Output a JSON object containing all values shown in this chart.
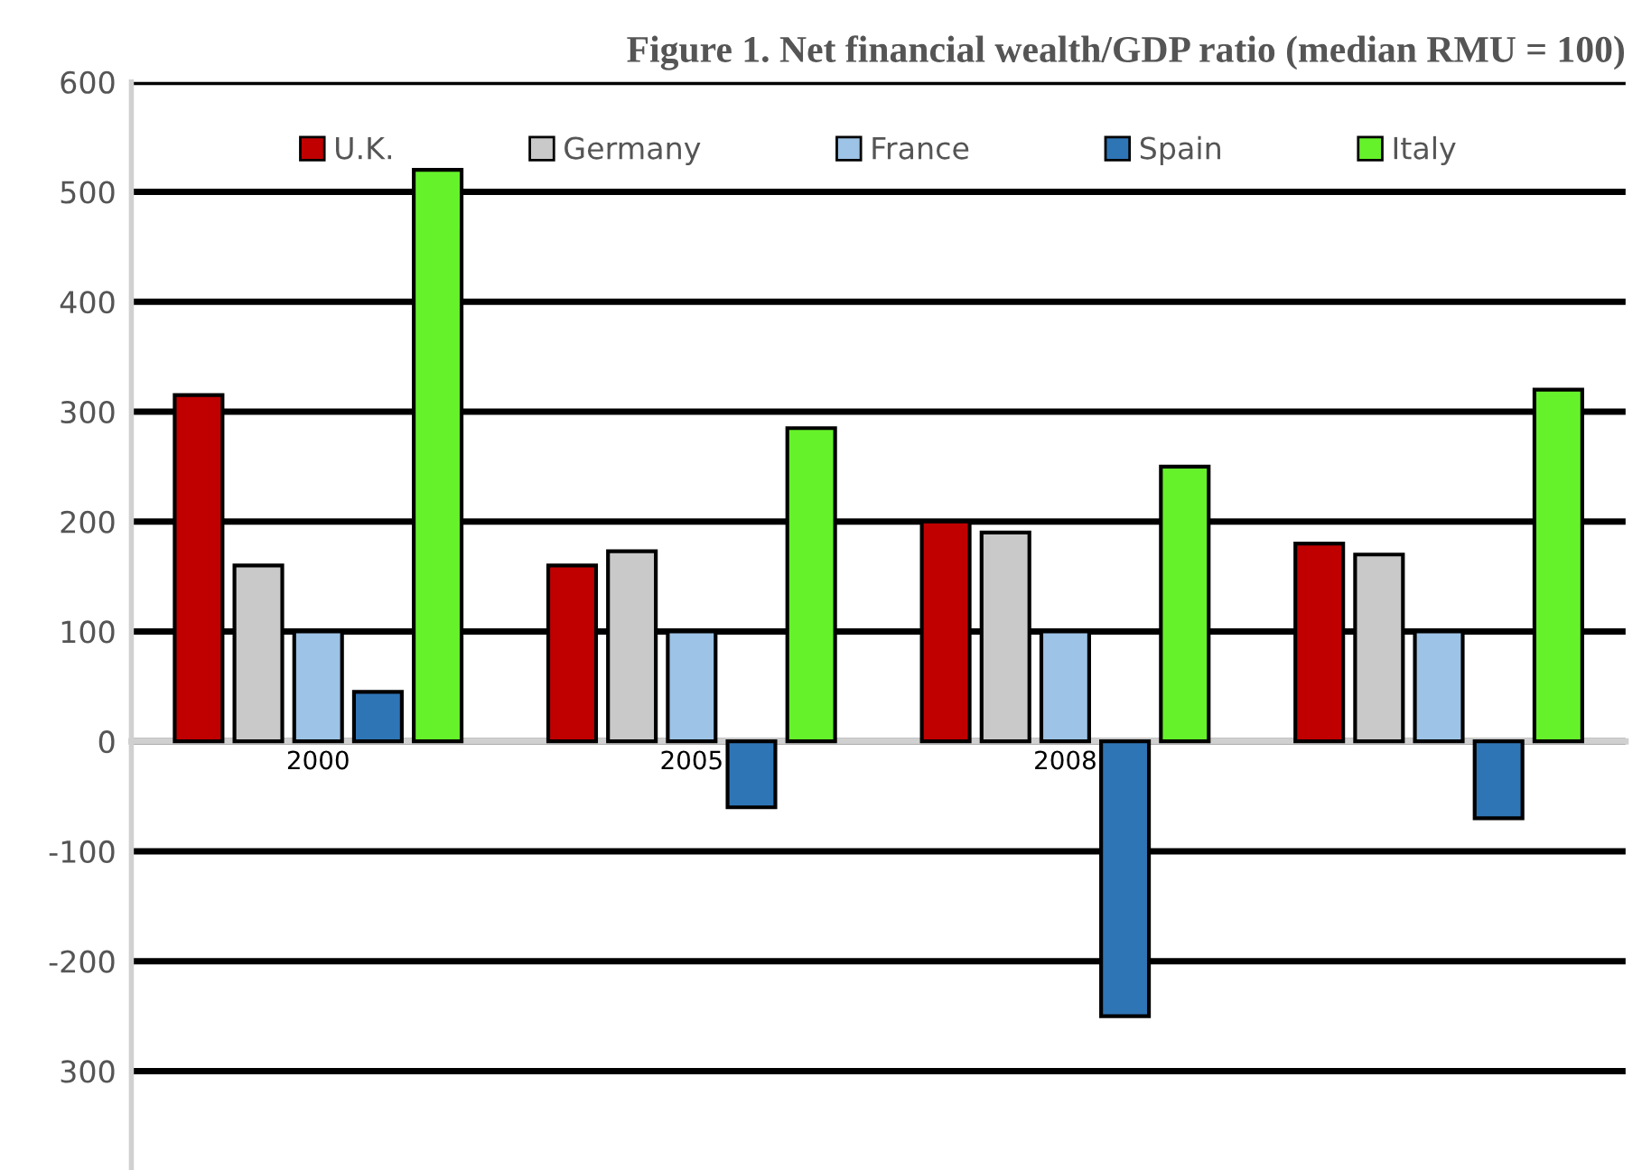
{
  "chart_data": {
    "type": "bar",
    "title": "Figure 1. Net financial wealth/GDP ratio (median RMU = 100)",
    "categories": [
      "2000",
      "2005",
      "2008",
      null
    ],
    "series": [
      {
        "name": "U.K.",
        "color": "#c00000",
        "values": [
          315,
          160,
          200,
          180
        ]
      },
      {
        "name": "Germany",
        "color": "#c9c9c9",
        "values": [
          160,
          173,
          190,
          170
        ]
      },
      {
        "name": "France",
        "color": "#9dc3e6",
        "values": [
          100,
          100,
          100,
          100
        ]
      },
      {
        "name": "Spain",
        "color": "#2e75b6",
        "values": [
          45,
          -60,
          -250,
          -70
        ]
      },
      {
        "name": "Italy",
        "color": "#66f22a",
        "values": [
          520,
          285,
          250,
          320
        ]
      }
    ],
    "ylim": [
      -390,
      600
    ],
    "yticks": [
      600,
      500,
      400,
      300,
      200,
      100,
      0,
      -100,
      -200,
      {
        "value": -300,
        "label": "300"
      }
    ],
    "grid": "y",
    "legend": "top"
  }
}
